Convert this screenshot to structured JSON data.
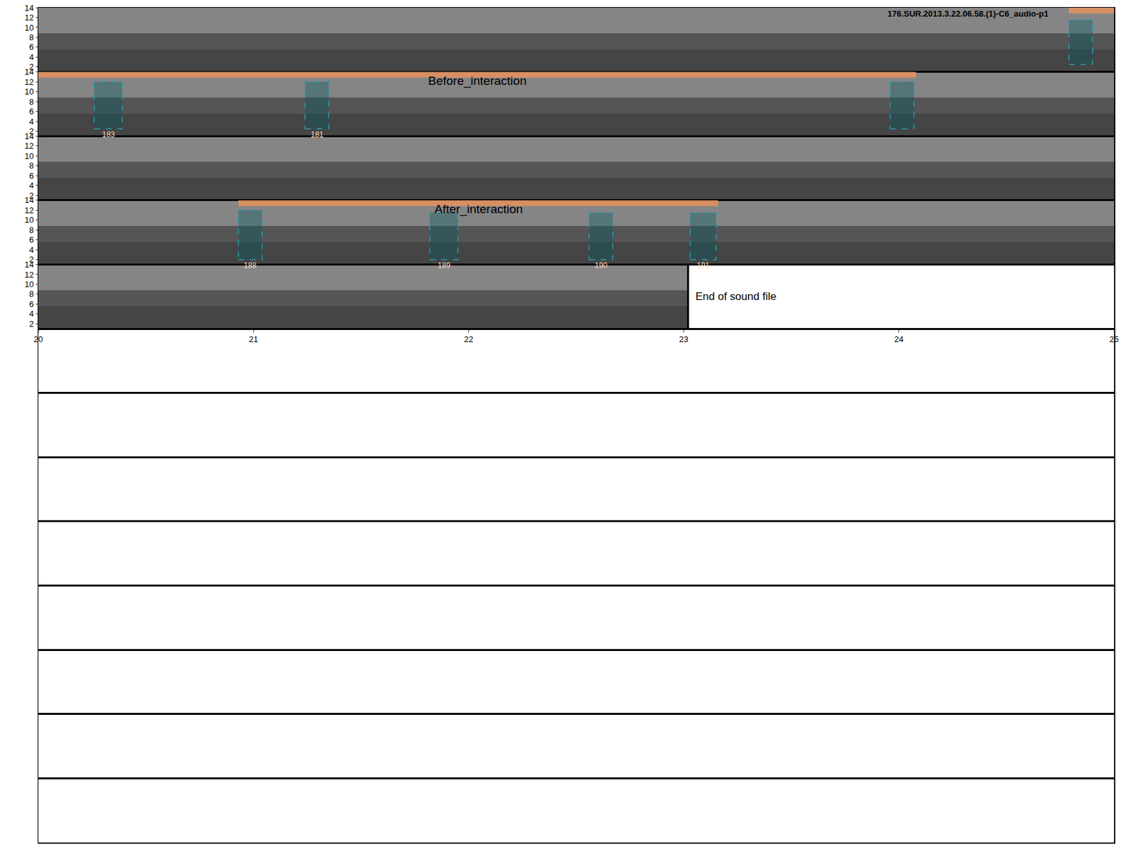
{
  "chart_data": {
    "type": "spectrogram",
    "title": "176.SUR.2013.3.22.06.58.(1)-C6_audio-p1",
    "rows": [
      {
        "xlim": [
          0,
          5
        ]
      },
      {
        "xlim": [
          5,
          10
        ]
      },
      {
        "xlim": [
          10,
          15
        ]
      },
      {
        "xlim": [
          15,
          20
        ]
      },
      {
        "xlim": [
          20,
          25
        ],
        "xticks": [
          20,
          21,
          22,
          23,
          24,
          25
        ]
      }
    ],
    "empty_rows": 8,
    "ylim": [
      1,
      14
    ],
    "yticks": [
      2,
      4,
      6,
      8,
      10,
      12,
      14
    ],
    "sound_end": 23.02,
    "end_label": "End of sound file",
    "periods": [
      {
        "label": "Before_interaction",
        "start": 4.79,
        "end": 9.08
      },
      {
        "label": "After_interaction",
        "start": 15.93,
        "end": 18.16
      }
    ],
    "detections": [
      {
        "label": null,
        "x0": 4.79,
        "x1": 4.9,
        "y0": 2.5,
        "y1": 11.5
      },
      {
        "label": "183",
        "x0": 5.26,
        "x1": 5.39,
        "y0": 2.5,
        "y1": 12
      },
      {
        "label": "181",
        "x0": 6.24,
        "x1": 6.35,
        "y0": 2.5,
        "y1": 12
      },
      {
        "label": null,
        "x0": 8.96,
        "x1": 9.07,
        "y0": 2.5,
        "y1": 12
      },
      {
        "label": "188",
        "x0": 15.93,
        "x1": 16.04,
        "y0": 2,
        "y1": 12
      },
      {
        "label": "189",
        "x0": 16.82,
        "x1": 16.95,
        "y0": 2,
        "y1": 11.5
      },
      {
        "label": "190",
        "x0": 17.56,
        "x1": 17.67,
        "y0": 2,
        "y1": 11.5
      },
      {
        "label": "191",
        "x0": 18.03,
        "x1": 18.15,
        "y0": 2,
        "y1": 11.5
      }
    ]
  }
}
